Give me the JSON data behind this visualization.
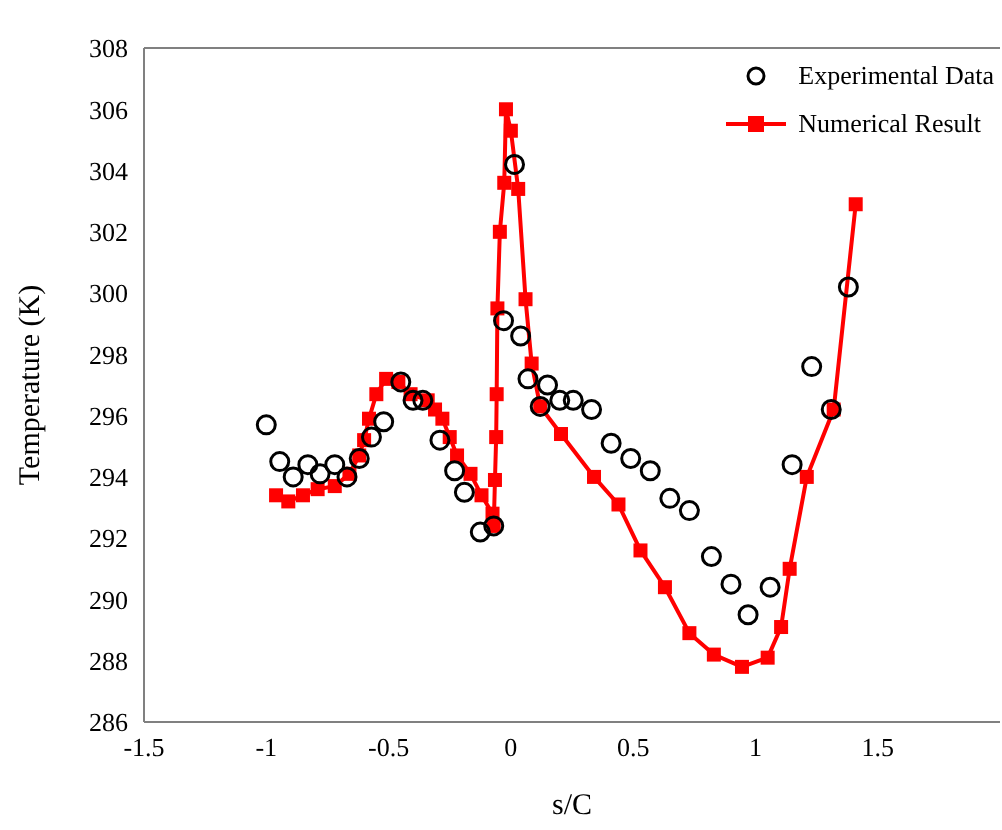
{
  "chart_data": {
    "type": "line",
    "xlabel": "s/C",
    "ylabel": "Temperature (K)",
    "xlim": [
      -1.5,
      2
    ],
    "xticks": [
      -1.5,
      -1,
      -0.5,
      0,
      0.5,
      1,
      1.5
    ],
    "ylim": [
      286,
      308
    ],
    "yticks": [
      286,
      288,
      290,
      292,
      294,
      296,
      298,
      300,
      302,
      304,
      306,
      308
    ],
    "grid": false,
    "legend": "top right",
    "series": [
      {
        "name": "Experimental Data",
        "type": "scatter",
        "marker": "circle",
        "color": "#000000",
        "x": [
          -1.0,
          -0.945,
          -0.89,
          -0.83,
          -0.78,
          -0.72,
          -0.67,
          -0.62,
          -0.57,
          -0.52,
          -0.45,
          -0.4,
          -0.36,
          -0.29,
          -0.23,
          -0.19,
          -0.125,
          -0.07,
          -0.03,
          0.015,
          0.04,
          0.07,
          0.12,
          0.15,
          0.2,
          0.255,
          0.33,
          0.41,
          0.49,
          0.57,
          0.65,
          0.73,
          0.82,
          0.9,
          0.97,
          1.06,
          1.15,
          1.23,
          1.31,
          1.38
        ],
        "values": [
          295.7,
          294.5,
          294.0,
          294.4,
          294.1,
          294.4,
          294.0,
          294.6,
          295.3,
          295.8,
          297.1,
          296.5,
          296.5,
          295.2,
          294.2,
          293.5,
          292.2,
          292.4,
          299.1,
          304.2,
          298.6,
          297.2,
          296.3,
          297.0,
          296.5,
          296.5,
          296.2,
          295.1,
          294.6,
          294.2,
          293.3,
          292.9,
          291.4,
          290.5,
          289.5,
          290.4,
          294.4,
          297.6,
          296.2,
          300.2
        ]
      },
      {
        "name": "Numerical Result",
        "type": "line",
        "marker": "square",
        "line_style": "solid",
        "color": "#ff0000",
        "x": [
          -0.96,
          -0.91,
          -0.85,
          -0.79,
          -0.72,
          -0.66,
          -0.62,
          -0.6,
          -0.58,
          -0.55,
          -0.51,
          -0.46,
          -0.41,
          -0.34,
          -0.31,
          -0.28,
          -0.25,
          -0.22,
          -0.165,
          -0.12,
          -0.075,
          -0.07,
          -0.065,
          -0.06,
          -0.058,
          -0.055,
          -0.045,
          -0.027,
          -0.02,
          0.0,
          0.03,
          0.06,
          0.085,
          0.12,
          0.205,
          0.34,
          0.44,
          0.53,
          0.63,
          0.73,
          0.83,
          0.945,
          1.05,
          1.105,
          1.14,
          1.21,
          1.32,
          1.41
        ],
        "values": [
          293.4,
          293.2,
          293.4,
          293.6,
          293.7,
          294.1,
          294.7,
          295.2,
          295.9,
          296.7,
          297.2,
          297.1,
          296.7,
          296.5,
          296.2,
          295.9,
          295.3,
          294.7,
          294.1,
          293.4,
          292.8,
          292.4,
          293.9,
          295.3,
          296.7,
          299.5,
          302.0,
          303.6,
          306.0,
          305.3,
          303.4,
          299.8,
          297.7,
          296.3,
          295.4,
          294.0,
          293.1,
          291.6,
          290.4,
          288.9,
          288.2,
          287.8,
          288.1,
          289.1,
          291.0,
          294.0,
          296.2,
          302.9
        ]
      }
    ]
  }
}
